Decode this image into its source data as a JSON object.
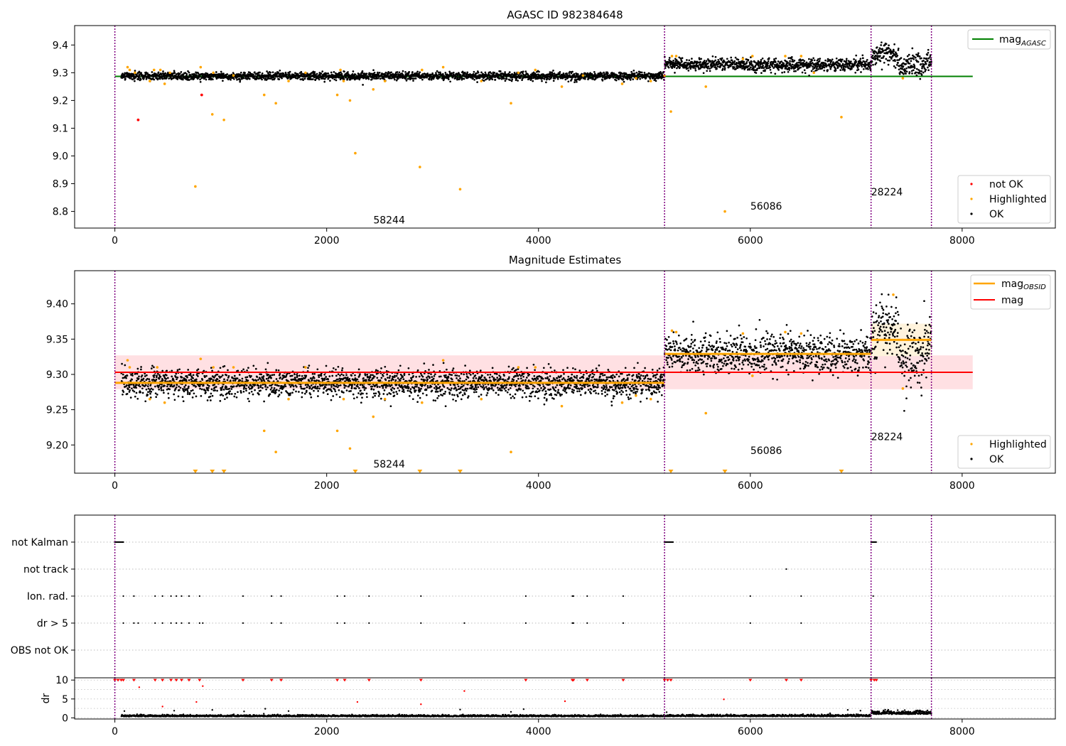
{
  "chart_data": [
    {
      "type": "scatter",
      "title": "AGASC ID 982384648",
      "xlabel": "",
      "ylabel": "",
      "xlim": [
        -380,
        8880
      ],
      "ylim": [
        8.74,
        9.47
      ],
      "x_ticks": [
        0,
        2000,
        4000,
        6000,
        8000
      ],
      "x_tick_labels": [
        "0",
        "2000",
        "4000",
        "6000",
        "8000"
      ],
      "y_ticks": [
        8.8,
        8.9,
        9.0,
        9.1,
        9.2,
        9.3,
        9.4
      ],
      "y_tick_labels": [
        "8.8",
        "8.9",
        "9.0",
        "9.1",
        "9.2",
        "9.3",
        "9.4"
      ],
      "obsid_boundaries": [
        0,
        5190,
        7140,
        7710
      ],
      "obsid_labels": [
        {
          "text": "58244",
          "x": 2590,
          "y": 8.77
        },
        {
          "text": "56086",
          "x": 6150,
          "y": 8.82
        },
        {
          "text": "28224",
          "x": 7290,
          "y": 8.87
        }
      ],
      "segments": [
        {
          "x0": 60,
          "x1": 5190,
          "center": 9.288,
          "spread": 0.007
        },
        {
          "x0": 5190,
          "x1": 7140,
          "center": 9.33,
          "spread": 0.011
        },
        {
          "x0": 7140,
          "x1": 7710,
          "center": 9.35,
          "spread": 0.02
        }
      ],
      "mag_agasc_line": {
        "x0": 0,
        "x1": 8100,
        "y": 9.287,
        "color": "#008000"
      },
      "highlighted_points": [
        [
          120,
          9.32
        ],
        [
          140,
          9.31
        ],
        [
          190,
          9.3
        ],
        [
          330,
          9.27
        ],
        [
          370,
          9.31
        ],
        [
          430,
          9.31
        ],
        [
          470,
          9.26
        ],
        [
          520,
          9.3
        ],
        [
          760,
          8.89
        ],
        [
          810,
          9.32
        ],
        [
          920,
          9.15
        ],
        [
          930,
          9.3
        ],
        [
          1030,
          9.13
        ],
        [
          1120,
          9.29
        ],
        [
          1410,
          9.22
        ],
        [
          1520,
          9.19
        ],
        [
          1640,
          9.27
        ],
        [
          1800,
          9.3
        ],
        [
          2100,
          9.22
        ],
        [
          2130,
          9.31
        ],
        [
          2160,
          9.27
        ],
        [
          2220,
          9.2
        ],
        [
          2270,
          9.01
        ],
        [
          2440,
          9.24
        ],
        [
          2550,
          9.27
        ],
        [
          2880,
          8.96
        ],
        [
          2900,
          9.31
        ],
        [
          3100,
          9.32
        ],
        [
          3260,
          8.88
        ],
        [
          3460,
          9.27
        ],
        [
          3740,
          9.19
        ],
        [
          3810,
          9.3
        ],
        [
          3970,
          9.31
        ],
        [
          4220,
          9.25
        ],
        [
          4420,
          9.29
        ],
        [
          4790,
          9.26
        ],
        [
          4920,
          9.28
        ],
        [
          5060,
          9.27
        ],
        [
          5190,
          9.29
        ],
        [
          5250,
          9.16
        ],
        [
          5260,
          9.36
        ],
        [
          5300,
          9.36
        ],
        [
          5580,
          9.25
        ],
        [
          5760,
          8.8
        ],
        [
          5930,
          9.35
        ],
        [
          6020,
          9.36
        ],
        [
          6330,
          9.36
        ],
        [
          6480,
          9.36
        ],
        [
          6600,
          9.3
        ],
        [
          6860,
          9.14
        ],
        [
          7440,
          9.28
        ]
      ],
      "not_ok_points": [
        [
          220,
          9.13
        ],
        [
          820,
          9.22
        ]
      ],
      "legend": {
        "entries": [
          "mag",
          "not OK",
          "Highlighted",
          "OK"
        ],
        "mag_subscript": "AGASC"
      },
      "colors": {
        "ok": "#000000",
        "highlighted": "#ffa500",
        "not_ok": "#ff0000",
        "boundary": "#800080"
      }
    },
    {
      "type": "scatter",
      "title": "Magnitude Estimates",
      "xlabel": "",
      "ylabel": "",
      "xlim": [
        -380,
        8880
      ],
      "ylim": [
        9.16,
        9.447
      ],
      "x_ticks": [
        0,
        2000,
        4000,
        6000,
        8000
      ],
      "x_tick_labels": [
        "0",
        "2000",
        "4000",
        "6000",
        "8000"
      ],
      "y_ticks": [
        9.2,
        9.25,
        9.3,
        9.35,
        9.4
      ],
      "y_tick_labels": [
        "9.20",
        "9.25",
        "9.30",
        "9.35",
        "9.40"
      ],
      "obsid_boundaries": [
        0,
        5190,
        7140,
        7710
      ],
      "obsid_labels": [
        {
          "text": "58244",
          "x": 2590,
          "y": 9.173
        },
        {
          "text": "56086",
          "x": 6150,
          "y": 9.192
        },
        {
          "text": "28224",
          "x": 7290,
          "y": 9.212
        }
      ],
      "segments": [
        {
          "x0": 60,
          "x1": 5190,
          "center": 9.288,
          "spread": 0.01
        },
        {
          "x0": 5190,
          "x1": 7140,
          "center": 9.329,
          "spread": 0.013
        },
        {
          "x0": 7140,
          "x1": 7710,
          "center": 9.349,
          "spread": 0.022
        }
      ],
      "mag_line": {
        "x0": 0,
        "x1": 8100,
        "y": 9.303,
        "band": [
          9.279,
          9.327
        ],
        "color": "#ff0000"
      },
      "mag_obsid_lines": [
        {
          "x0": 0,
          "x1": 5190,
          "y": 9.288
        },
        {
          "x0": 5190,
          "x1": 7140,
          "y": 9.329
        },
        {
          "x0": 7140,
          "x1": 7710,
          "y": 9.349
        }
      ],
      "highlighted_points": [
        [
          120,
          9.32
        ],
        [
          140,
          9.31
        ],
        [
          330,
          9.265
        ],
        [
          400,
          9.31
        ],
        [
          470,
          9.26
        ],
        [
          810,
          9.322
        ],
        [
          930,
          9.31
        ],
        [
          1120,
          9.31
        ],
        [
          1410,
          9.22
        ],
        [
          1520,
          9.19
        ],
        [
          1640,
          9.265
        ],
        [
          1800,
          9.31
        ],
        [
          2100,
          9.22
        ],
        [
          2160,
          9.265
        ],
        [
          2220,
          9.195
        ],
        [
          2440,
          9.24
        ],
        [
          2550,
          9.265
        ],
        [
          2900,
          9.26
        ],
        [
          3100,
          9.32
        ],
        [
          3460,
          9.265
        ],
        [
          3740,
          9.19
        ],
        [
          3810,
          9.31
        ],
        [
          3970,
          9.31
        ],
        [
          4220,
          9.255
        ],
        [
          4790,
          9.26
        ],
        [
          4920,
          9.27
        ],
        [
          5060,
          9.265
        ],
        [
          5260,
          9.362
        ],
        [
          5300,
          9.36
        ],
        [
          5580,
          9.245
        ],
        [
          5930,
          9.358
        ],
        [
          6020,
          9.298
        ],
        [
          6330,
          9.36
        ],
        [
          6480,
          9.358
        ],
        [
          7350,
          9.413
        ],
        [
          7440,
          9.28
        ]
      ],
      "out_of_range_markers": [
        760,
        920,
        1030,
        2270,
        2880,
        3260,
        5250,
        5760,
        6860
      ],
      "legend": {
        "entries": [
          "mag",
          "mag",
          "Highlighted",
          "OK"
        ],
        "mag_obsid_subscript": "OBSID"
      },
      "colors": {
        "ok": "#000000",
        "highlighted": "#ffa500",
        "mag": "#ff0000",
        "mag_obsid": "#ffa500",
        "band": "#ffe0e3"
      }
    },
    {
      "type": "scatter",
      "title": "",
      "xlabel": "",
      "ylabel": "",
      "xlim": [
        -380,
        8880
      ],
      "flag_rows": [
        "not Kalman",
        "not track",
        "Ion. rad.",
        "dr > 5",
        "OBS not OK"
      ],
      "flag_points": {
        "not Kalman": [
          [
            0,
            80
          ],
          [
            5190,
            5270
          ],
          [
            7140,
            7190
          ]
        ],
        "not track": [
          6340
        ],
        "Ion. rad.": [
          80,
          180,
          380,
          450,
          530,
          580,
          630,
          700,
          800,
          1210,
          1480,
          1570,
          2100,
          2170,
          2400,
          2890,
          3880,
          4320,
          4330,
          4460,
          4800,
          6000,
          6480,
          7160
        ],
        "dr > 5": [
          80,
          180,
          220,
          380,
          450,
          530,
          580,
          630,
          700,
          800,
          830,
          1210,
          1480,
          1570,
          2100,
          2170,
          2400,
          2890,
          3300,
          3880,
          4320,
          4330,
          4460,
          4800,
          6000,
          6480
        ],
        "OBS not OK": []
      },
      "colors": {
        "flag": "#000000",
        "grid": "#bbbbbb"
      }
    },
    {
      "type": "scatter",
      "title": "",
      "xlabel": "",
      "ylabel": "dr",
      "xlim": [
        -380,
        8880
      ],
      "ylim": [
        -0.3,
        10.6
      ],
      "y_ticks": [
        0,
        5,
        10
      ],
      "y_tick_labels": [
        "0",
        "5",
        "10"
      ],
      "x_ticks": [
        0,
        2000,
        4000,
        6000,
        8000
      ],
      "x_tick_labels": [
        "0",
        "2000",
        "4000",
        "6000",
        "8000"
      ],
      "clipped_markers": [
        0,
        30,
        60,
        80,
        180,
        380,
        450,
        530,
        580,
        630,
        700,
        800,
        1210,
        1480,
        1570,
        2100,
        2170,
        2400,
        2890,
        3880,
        4320,
        4330,
        4460,
        4800,
        5190,
        5220,
        5250,
        6000,
        6340,
        6480,
        7140,
        7170,
        7190
      ],
      "red_points": [
        [
          230,
          8.1
        ],
        [
          450,
          3.0
        ],
        [
          770,
          4.2
        ],
        [
          830,
          8.4
        ],
        [
          2290,
          4.2
        ],
        [
          2890,
          3.6
        ],
        [
          3300,
          7.1
        ],
        [
          4250,
          4.4
        ],
        [
          5750,
          4.9
        ]
      ],
      "black_outliers": [
        [
          90,
          1.8
        ],
        [
          560,
          1.9
        ],
        [
          920,
          2.1
        ],
        [
          1220,
          1.7
        ],
        [
          1420,
          2.4
        ],
        [
          1640,
          1.8
        ],
        [
          3260,
          2.2
        ],
        [
          3740,
          1.6
        ],
        [
          3860,
          2.3
        ],
        [
          5210,
          1.5
        ],
        [
          6920,
          2.1
        ],
        [
          7040,
          1.9
        ]
      ],
      "segments": [
        {
          "x0": 60,
          "x1": 5190,
          "center": 0.45,
          "spread": 0.2
        },
        {
          "x0": 5190,
          "x1": 7140,
          "center": 0.5,
          "spread": 0.22
        },
        {
          "x0": 7140,
          "x1": 7710,
          "center": 1.2,
          "spread": 0.45
        }
      ],
      "colors": {
        "ok": "#000000",
        "flag": "#ff0000"
      }
    }
  ]
}
